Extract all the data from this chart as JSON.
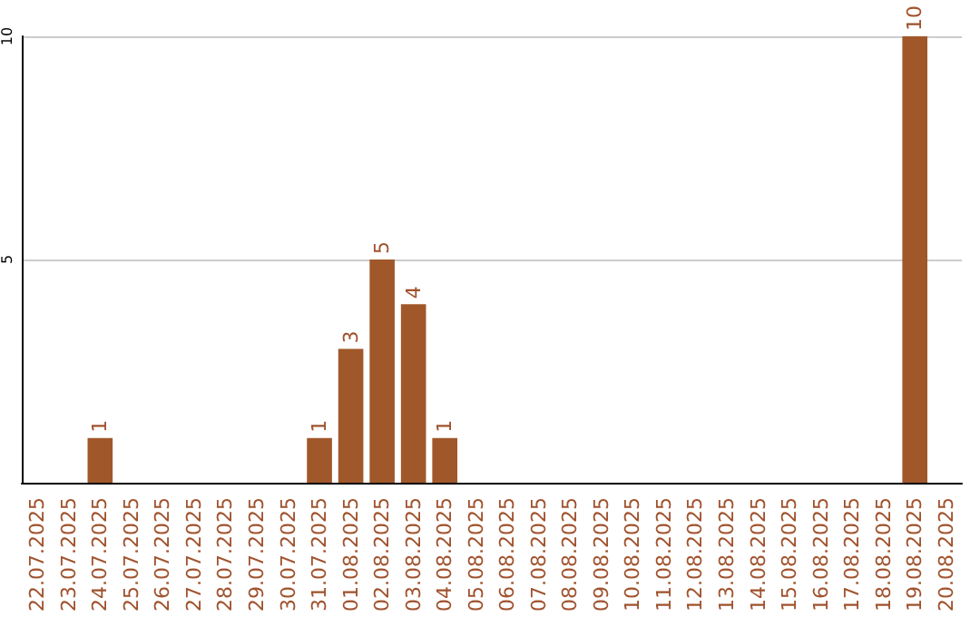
{
  "chart_data": {
    "type": "bar",
    "categories": [
      "22.07.2025",
      "23.07.2025",
      "24.07.2025",
      "25.07.2025",
      "26.07.2025",
      "27.07.2025",
      "28.07.2025",
      "29.07.2025",
      "30.07.2025",
      "31.07.2025",
      "01.08.2025",
      "02.08.2025",
      "03.08.2025",
      "04.08.2025",
      "05.08.2025",
      "06.08.2025",
      "07.08.2025",
      "08.08.2025",
      "09.08.2025",
      "10.08.2025",
      "11.08.2025",
      "12.08.2025",
      "13.08.2025",
      "14.08.2025",
      "15.08.2025",
      "16.08.2025",
      "17.08.2025",
      "18.08.2025",
      "19.08.2025",
      "20.08.2025"
    ],
    "values": [
      0,
      0,
      1,
      0,
      0,
      0,
      0,
      0,
      0,
      1,
      3,
      5,
      4,
      1,
      0,
      0,
      0,
      0,
      0,
      0,
      0,
      0,
      0,
      0,
      0,
      0,
      0,
      0,
      10,
      0
    ],
    "value_labels": [
      null,
      null,
      "1",
      null,
      null,
      null,
      null,
      null,
      null,
      "1",
      "3",
      "5",
      "4",
      "1",
      null,
      null,
      null,
      null,
      null,
      null,
      null,
      null,
      null,
      null,
      null,
      null,
      null,
      null,
      "10",
      null
    ],
    "color": "#a0582a",
    "ylim": [
      0,
      10
    ],
    "yticks": [
      5,
      10
    ],
    "grid": "y"
  }
}
